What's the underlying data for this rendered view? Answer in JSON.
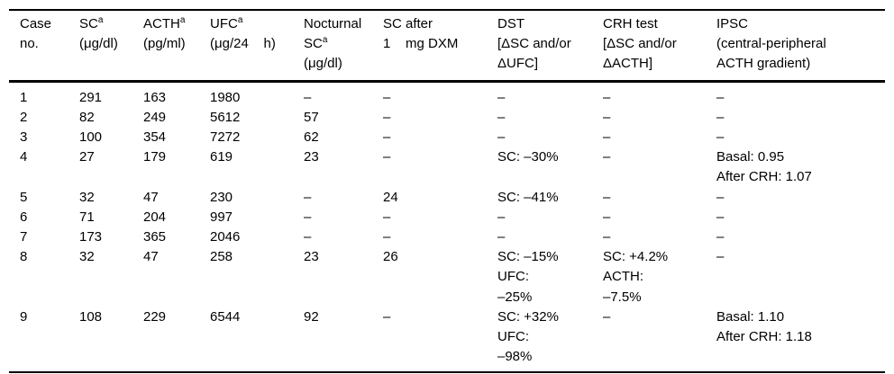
{
  "page": {
    "background_color": "#ffffff",
    "text_color": "#000000",
    "rule_color": "#000000",
    "empty_marker": "–"
  },
  "table": {
    "headers": [
      {
        "id": "case-no",
        "text": "Case\nno."
      },
      {
        "id": "sc",
        "name": "SC",
        "sup": "a",
        "unit": "(μg/dl)"
      },
      {
        "id": "acth",
        "name": "ACTH",
        "sup": "a",
        "unit": "(pg/ml)"
      },
      {
        "id": "ufc",
        "name": "UFC",
        "sup": "a",
        "unit": "(μg/24    h)"
      },
      {
        "id": "nocturnal-sc",
        "line1": "Nocturnal",
        "name": "SC",
        "sup": "a",
        "unit": "(μg/dl)"
      },
      {
        "id": "sc-after-dxm",
        "text": "SC after\n1    mg DXM"
      },
      {
        "id": "dst",
        "text": "DST\n[ΔSC and/or\nΔUFC]"
      },
      {
        "id": "crh-test",
        "text": "CRH test\n[ΔSC and/or\nΔACTH]"
      },
      {
        "id": "ipsc",
        "text": "IPSC\n(central-peripheral\nACTH gradient)"
      }
    ],
    "rows": [
      [
        "1",
        "291",
        "163",
        "1980",
        "–",
        "–",
        "–",
        "–",
        "–"
      ],
      [
        "2",
        "82",
        "249",
        "5612",
        "57",
        "–",
        "–",
        "–",
        "–"
      ],
      [
        "3",
        "100",
        "354",
        "7272",
        "62",
        "–",
        "–",
        "–",
        "–"
      ],
      [
        "4",
        "27",
        "179",
        "619",
        "23",
        "–",
        "SC: –30%",
        "–",
        "Basal: 0.95\nAfter CRH: 1.07"
      ],
      [
        "5",
        "32",
        "47",
        "230",
        "–",
        "24",
        "SC: –41%",
        "–",
        "–"
      ],
      [
        "6",
        "71",
        "204",
        "997",
        "–",
        "–",
        "–",
        "–",
        "–"
      ],
      [
        "7",
        "173",
        "365",
        "2046",
        "–",
        "–",
        "–",
        "–",
        "–"
      ],
      [
        "8",
        "32",
        "47",
        "258",
        "23",
        "26",
        "SC: –15%\nUFC:\n–25%",
        "SC: +4.2%\nACTH:\n–7.5%",
        "–"
      ],
      [
        "9",
        "108",
        "229",
        "6544",
        "92",
        "–",
        "SC: +32%\nUFC:\n–98%",
        "–",
        "Basal: 1.10\nAfter CRH: 1.18"
      ]
    ]
  }
}
